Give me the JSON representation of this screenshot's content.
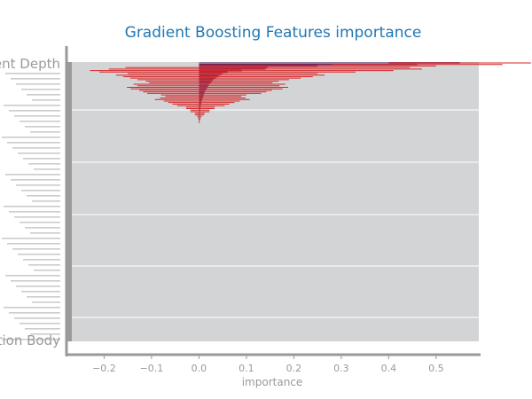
{
  "chart_data": {
    "type": "bar",
    "orientation": "horizontal",
    "title": "Gradient Boosting Features importance",
    "xlabel": "importance",
    "ylabel": "",
    "xlim": [
      -0.27,
      0.59
    ],
    "xticks": [
      -0.2,
      -0.1,
      0.0,
      0.1,
      0.2,
      0.3,
      0.4,
      0.5
    ],
    "xtick_labels": [
      "−0.2",
      "−0.1",
      "0.0",
      "0.1",
      "0.2",
      "0.3",
      "0.4",
      "0.5"
    ],
    "grid": true,
    "feature_labels_visible": [
      "Event Depth",
      "Rehabilitation Body"
    ],
    "importance": [
      0.55,
      0.46,
      0.25,
      0.145,
      0.14,
      0.09,
      0.06,
      0.05,
      0.045,
      0.04,
      0.035,
      0.03,
      0.028,
      0.025,
      0.022,
      0.02,
      0.018,
      0.016,
      0.014,
      0.012,
      0.011,
      0.01,
      0.009,
      0.008,
      0.007,
      0.006,
      0.005,
      0.004,
      0.004,
      0.003,
      0.003,
      0.002,
      0.002,
      0.002,
      0.001,
      0.001,
      0.001,
      0.001,
      0.0005,
      0.0005
    ],
    "error": [
      0.15,
      0.18,
      0.25,
      0.3,
      0.33,
      0.32,
      0.27,
      0.2,
      0.22,
      0.2,
      0.18,
      0.16,
      0.14,
      0.13,
      0.16,
      0.15,
      0.17,
      0.16,
      0.14,
      0.13,
      0.12,
      0.09,
      0.08,
      0.09,
      0.1,
      0.08,
      0.07,
      0.06,
      0.05,
      0.03,
      0.03,
      0.02,
      0.02,
      0.01,
      0.01,
      0.005,
      0.003,
      0.002,
      0.001,
      0.001
    ],
    "bar_color": "#7a1f4f",
    "error_color": "#d62728",
    "plot_bg": "#d3d4d6",
    "axis_color": "#999999",
    "title_color": "#1f77b4"
  }
}
